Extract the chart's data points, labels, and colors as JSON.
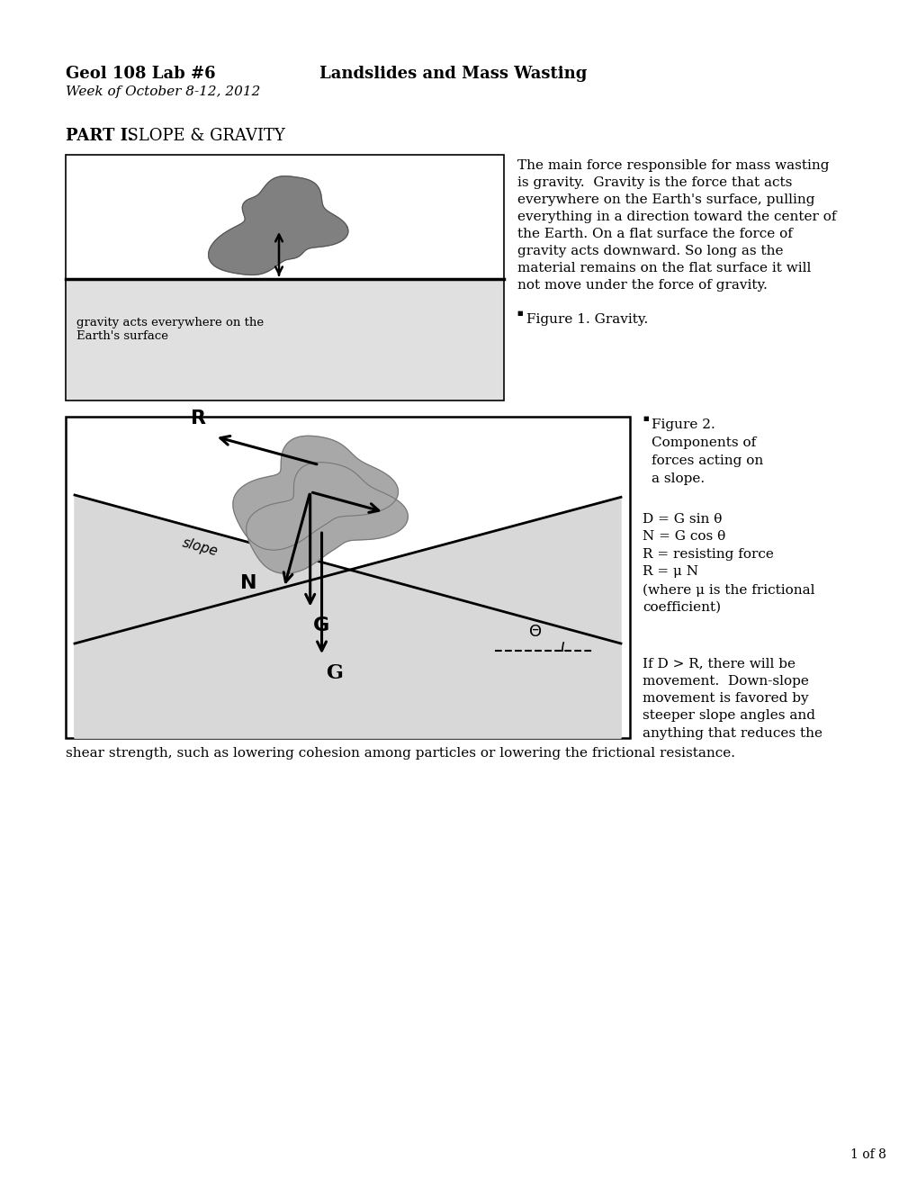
{
  "bg_color": "#ffffff",
  "header_bold": "Geol 108 Lab #6",
  "header_title": "Landslides and Mass Wasting",
  "header_sub": "Week of October 8-12, 2012",
  "part_label": "PART I.",
  "part_title": "  SLOPE & GRAVITY",
  "fig1_caption": "Figure 1. Gravity.",
  "fig1_label": "gravity acts everywhere on the\nEarth's surface",
  "right_text1": "The main force responsible for mass wasting\nis gravity.  Gravity is the force that acts\neverywhere on the Earth's surface, pulling\neverything in a direction toward the center of\nthe Earth. On a flat surface the force of\ngravity acts downward. So long as the\nmaterial remains on the flat surface it will\nnot move under the force of gravity.",
  "fig2_caption": "Figure 2.\nComponents of\nforces acting on\na slope.",
  "right_text2a": "D = G sin θ\nN = G cos θ\nR = resisting force\nR = μ N\n(where μ is the frictional\ncoefficient)",
  "right_text2b": "If D > R, there will be\nmovement.  Down-slope\nmovement is favored by\nsteeper slope angles and\nanything that reduces the",
  "bottom_text": "shear strength, such as lowering cohesion among particles or lowering the frictional resistance.",
  "page_num": "1 of 8"
}
